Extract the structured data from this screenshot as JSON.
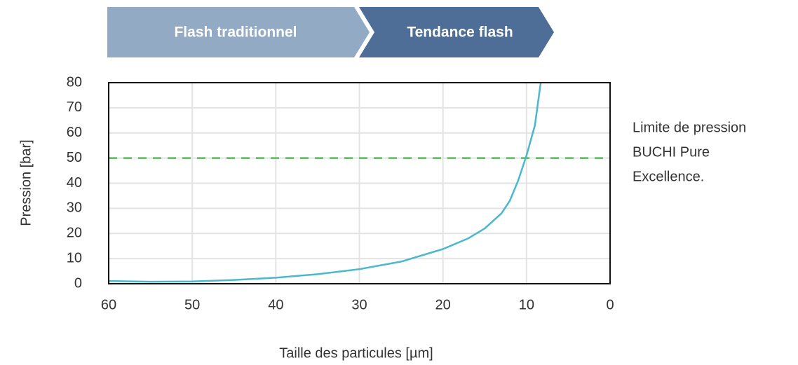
{
  "chart_data": {
    "type": "line",
    "banners": [
      {
        "label": "Flash traditionnel",
        "color": "#93aac4"
      },
      {
        "label": "Tendance flash",
        "color": "#4e6e97"
      }
    ],
    "x_label": "Taille des particules [µm]",
    "y_label": "Pression [bar]",
    "annotation": [
      "Limite de pression",
      "BUCHI Pure",
      "Excellence."
    ],
    "x": [
      60,
      55,
      50,
      45,
      40,
      35,
      30,
      25,
      20,
      17,
      15,
      13,
      12,
      11,
      10,
      9,
      8.3
    ],
    "values": [
      1.1,
      0.8,
      0.9,
      1.5,
      2.4,
      3.8,
      5.8,
      8.8,
      13.8,
      18,
      22,
      28,
      33,
      41,
      51,
      63,
      80
    ],
    "color": "#4bb8cc",
    "reference_line": {
      "value": 50,
      "color": "#5cb85c"
    },
    "xlim": [
      60,
      0
    ],
    "xticks": [
      60,
      50,
      40,
      30,
      20,
      10,
      0
    ],
    "ylim": [
      0,
      80
    ],
    "yticks": [
      0,
      10,
      20,
      30,
      40,
      50,
      60,
      70,
      80
    ],
    "grid": true
  }
}
